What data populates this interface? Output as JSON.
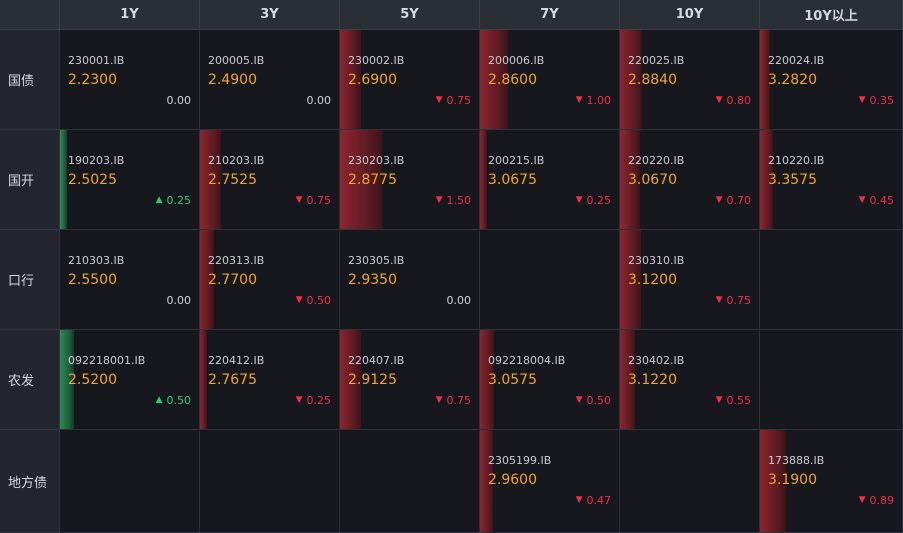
{
  "columns": [
    "1Y",
    "3Y",
    "5Y",
    "7Y",
    "10Y",
    "10Y以上"
  ],
  "rows": [
    {
      "label": "国债",
      "cells": [
        {
          "code": "230001.IB",
          "yield": "2.2300",
          "change": "0.00",
          "dir": "flat",
          "bar": 0
        },
        {
          "code": "200005.IB",
          "yield": "2.4900",
          "change": "0.00",
          "dir": "flat",
          "bar": 0
        },
        {
          "code": "230002.IB",
          "yield": "2.6900",
          "change": "0.75",
          "dir": "down",
          "bar": 0.15
        },
        {
          "code": "200006.IB",
          "yield": "2.8600",
          "change": "1.00",
          "dir": "down",
          "bar": 0.2
        },
        {
          "code": "220025.IB",
          "yield": "2.8840",
          "change": "0.80",
          "dir": "down",
          "bar": 0.16
        },
        {
          "code": "220024.IB",
          "yield": "3.2820",
          "change": "0.35",
          "dir": "down",
          "bar": 0.07
        }
      ]
    },
    {
      "label": "国开",
      "cells": [
        {
          "code": "190203.IB",
          "yield": "2.5025",
          "change": "0.25",
          "dir": "up",
          "bar": 0.05
        },
        {
          "code": "210203.IB",
          "yield": "2.7525",
          "change": "0.75",
          "dir": "down",
          "bar": 0.15
        },
        {
          "code": "230203.IB",
          "yield": "2.8775",
          "change": "1.50",
          "dir": "down",
          "bar": 0.3
        },
        {
          "code": "200215.IB",
          "yield": "3.0675",
          "change": "0.25",
          "dir": "down",
          "bar": 0.05
        },
        {
          "code": "220220.IB",
          "yield": "3.0670",
          "change": "0.70",
          "dir": "down",
          "bar": 0.14
        },
        {
          "code": "210220.IB",
          "yield": "3.3575",
          "change": "0.45",
          "dir": "down",
          "bar": 0.09
        }
      ]
    },
    {
      "label": "口行",
      "cells": [
        {
          "code": "210303.IB",
          "yield": "2.5500",
          "change": "0.00",
          "dir": "flat",
          "bar": 0
        },
        {
          "code": "220313.IB",
          "yield": "2.7700",
          "change": "0.50",
          "dir": "down",
          "bar": 0.1
        },
        {
          "code": "230305.IB",
          "yield": "2.9350",
          "change": "0.00",
          "dir": "flat",
          "bar": 0
        },
        null,
        {
          "code": "230310.IB",
          "yield": "3.1200",
          "change": "0.75",
          "dir": "down",
          "bar": 0.15
        },
        null
      ]
    },
    {
      "label": "农发",
      "cells": [
        {
          "code": "092218001.IB",
          "yield": "2.5200",
          "change": "0.50",
          "dir": "up",
          "bar": 0.1
        },
        {
          "code": "220412.IB",
          "yield": "2.7675",
          "change": "0.25",
          "dir": "down",
          "bar": 0.05
        },
        {
          "code": "220407.IB",
          "yield": "2.9125",
          "change": "0.75",
          "dir": "down",
          "bar": 0.15
        },
        {
          "code": "092218004.IB",
          "yield": "3.0575",
          "change": "0.50",
          "dir": "down",
          "bar": 0.1
        },
        {
          "code": "230402.IB",
          "yield": "3.1220",
          "change": "0.55",
          "dir": "down",
          "bar": 0.11
        },
        null
      ]
    },
    {
      "label": "地方债",
      "cells": [
        null,
        null,
        null,
        {
          "code": "2305199.IB",
          "yield": "2.9600",
          "change": "0.47",
          "dir": "down",
          "bar": 0.09
        },
        null,
        {
          "code": "173888.IB",
          "yield": "3.1900",
          "change": "0.89",
          "dir": "down",
          "bar": 0.18
        }
      ]
    }
  ],
  "colors": {
    "down": "#ef2f43",
    "up": "#2ecc71",
    "yield": "#f1a52a",
    "header_bg": "#2a2e35",
    "cell_bg": "#16181d"
  },
  "icons": {
    "down": "triangle-down-icon",
    "up": "triangle-up-icon"
  }
}
